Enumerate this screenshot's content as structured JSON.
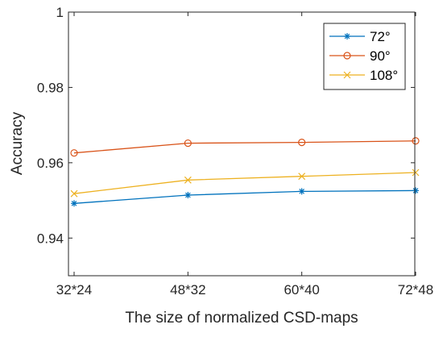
{
  "chart_data": {
    "type": "line",
    "categories": [
      "32*24",
      "48*32",
      "60*40",
      "72*48"
    ],
    "xlabel": "The size of normalized CSD-maps",
    "ylabel": "Accuracy",
    "ylim": [
      0.93,
      1.0
    ],
    "yticks": [
      "0.94",
      "0.96",
      "0.98",
      "1"
    ],
    "grid": false,
    "legend_position": "top-right",
    "series": [
      {
        "name": "72°",
        "color": "#0072BD",
        "marker": "asterisk",
        "values": [
          0.9492,
          0.9514,
          0.9524,
          0.9526
        ]
      },
      {
        "name": "90°",
        "color": "#D95319",
        "marker": "circle",
        "values": [
          0.9626,
          0.9652,
          0.9654,
          0.9658
        ]
      },
      {
        "name": "108°",
        "color": "#EDB120",
        "marker": "x",
        "values": [
          0.9518,
          0.9554,
          0.9564,
          0.9574
        ]
      }
    ]
  }
}
